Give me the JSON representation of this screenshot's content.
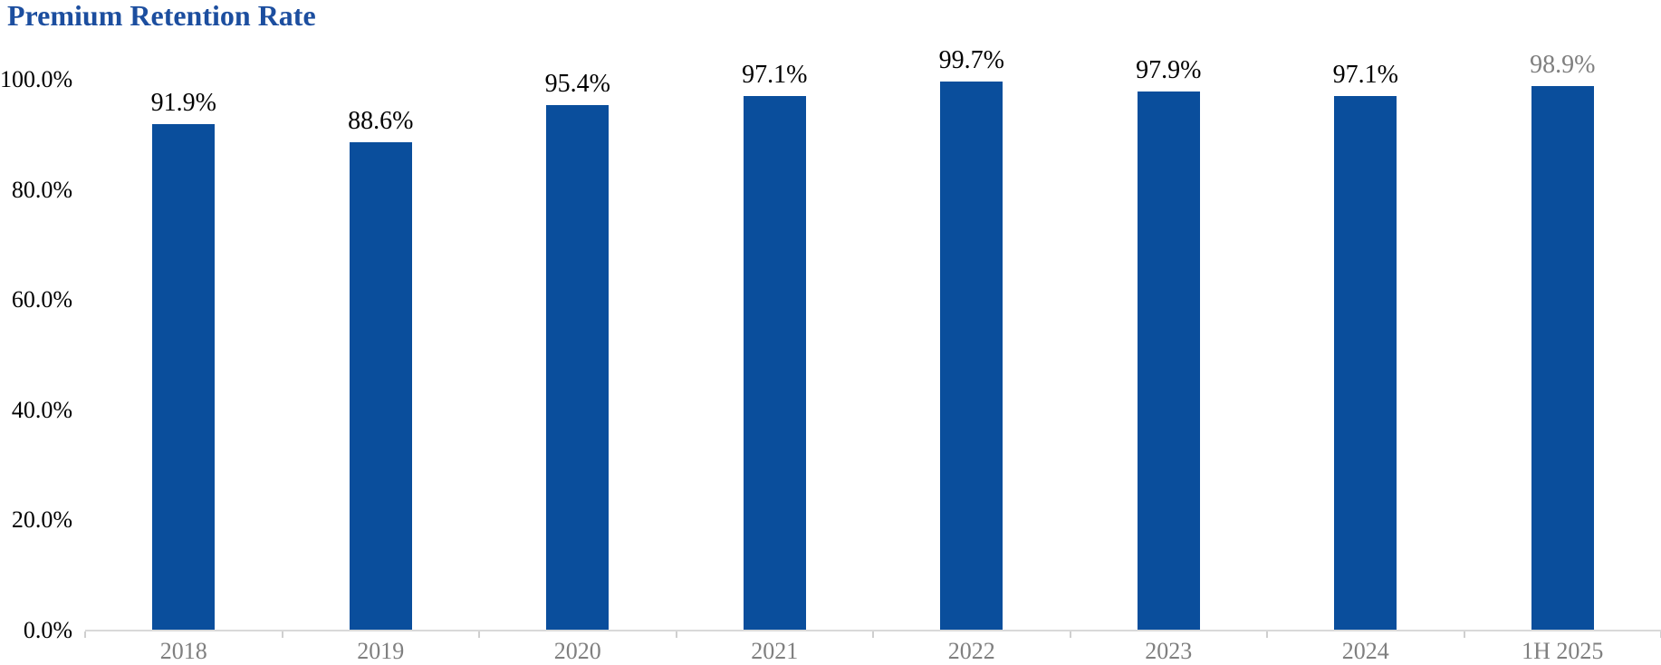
{
  "title": "Premium Retention Rate",
  "colors": {
    "title": "#1C4E9F",
    "bar": "#0A4E9C",
    "y_tick_label": "#000000",
    "x_tick_label": "#7F7F7F",
    "axis_line": "#D9D9D9",
    "tick_mark": "#CFCFCF"
  },
  "chart_data": {
    "type": "bar",
    "title": "Premium Retention Rate",
    "categories": [
      "2018",
      "2019",
      "2020",
      "2021",
      "2022",
      "2023",
      "2024",
      "1H 2025"
    ],
    "values": [
      91.9,
      88.6,
      95.4,
      97.1,
      99.7,
      97.9,
      97.1,
      98.9
    ],
    "data_labels": [
      "91.9%",
      "88.6%",
      "95.4%",
      "97.1%",
      "99.7%",
      "97.9%",
      "97.1%",
      "98.9%"
    ],
    "data_label_colors": [
      "#000000",
      "#000000",
      "#000000",
      "#000000",
      "#000000",
      "#000000",
      "#000000",
      "#7F7F7F"
    ],
    "xlabel": "",
    "ylabel": "",
    "ylim": [
      0,
      100
    ],
    "yticks": [
      0,
      20,
      40,
      60,
      80,
      100
    ],
    "ytick_labels": [
      "0.0%",
      "20.0%",
      "40.0%",
      "60.0%",
      "80.0%",
      "100.0%"
    ],
    "grid": false,
    "legend": "none"
  }
}
